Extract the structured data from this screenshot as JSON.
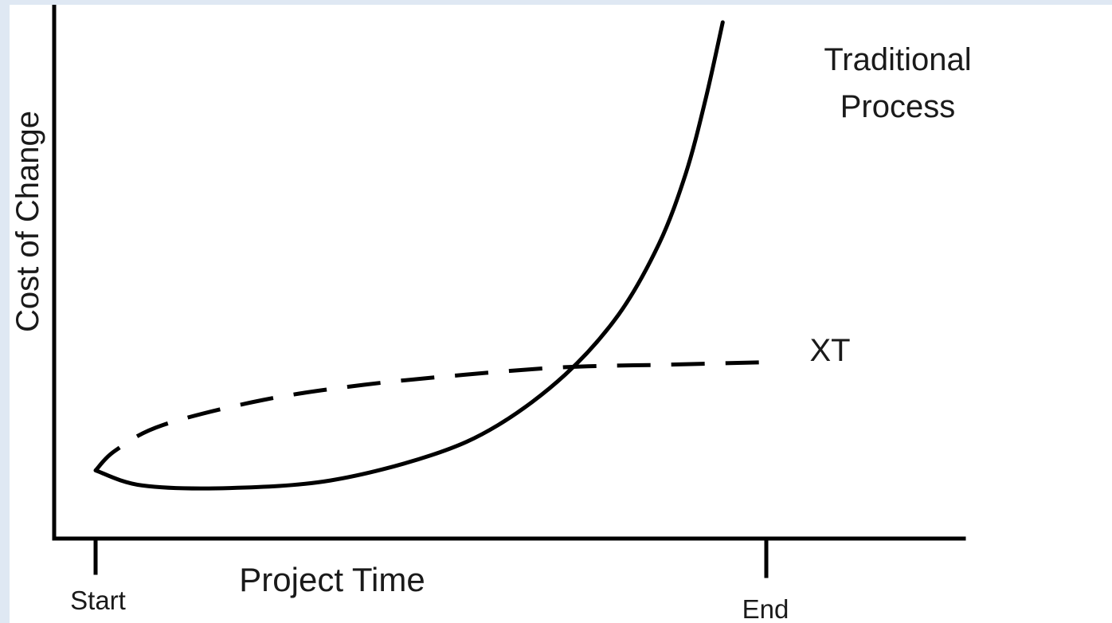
{
  "chart_data": {
    "type": "line",
    "title": "",
    "xlabel": "Project Time",
    "ylabel": "Cost of Change",
    "x_ticks": [
      "Start",
      "End"
    ],
    "xlim": [
      0,
      1
    ],
    "ylim": [
      0,
      1
    ],
    "grid": false,
    "legend": "none",
    "series": [
      {
        "name": "Traditional Process",
        "style": "solid",
        "color": "#000000",
        "x": [
          0.0,
          0.07,
          0.2,
          0.35,
          0.5,
          0.6,
          0.7,
          0.78,
          0.84,
          0.88,
          0.91,
          0.935
        ],
        "y": [
          0.11,
          0.08,
          0.075,
          0.09,
          0.14,
          0.2,
          0.3,
          0.42,
          0.56,
          0.7,
          0.85,
          1.0
        ]
      },
      {
        "name": "XT",
        "style": "dashed",
        "color": "#000000",
        "x": [
          0.0,
          0.03,
          0.1,
          0.25,
          0.4,
          0.55,
          0.7,
          0.85,
          1.0
        ],
        "y": [
          0.11,
          0.15,
          0.2,
          0.25,
          0.28,
          0.3,
          0.315,
          0.32,
          0.325
        ]
      }
    ]
  }
}
